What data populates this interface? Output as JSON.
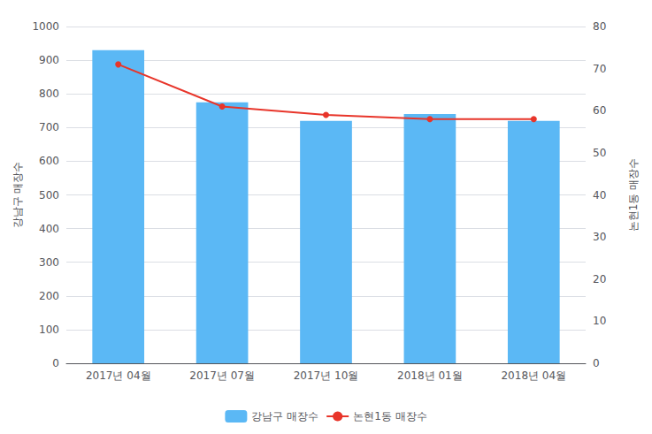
{
  "chart_data": {
    "type": "bar",
    "categories": [
      "2017년 04월",
      "2017년 07월",
      "2017년 10월",
      "2018년 01월",
      "2018년 04월"
    ],
    "series": [
      {
        "name": "강남구 매장수",
        "type": "bar",
        "color": "#5BB8F5",
        "values": [
          930,
          775,
          720,
          740,
          720
        ]
      },
      {
        "name": "논현1동 매장수",
        "type": "line",
        "color": "#E8352A",
        "marker": "circle",
        "axis": "y2",
        "values": [
          71,
          61,
          59,
          58,
          58
        ]
      }
    ],
    "ylabel": "강남구 매장수",
    "y2label": "논현1동 매장수",
    "ylim": [
      0,
      1000
    ],
    "yticks": [
      0,
      100,
      200,
      300,
      400,
      500,
      600,
      700,
      800,
      900,
      1000
    ],
    "y2lim": [
      0,
      80
    ],
    "y2ticks": [
      0,
      10,
      20,
      30,
      40,
      50,
      60,
      70,
      80
    ],
    "legend": "bottom",
    "grid": true
  }
}
